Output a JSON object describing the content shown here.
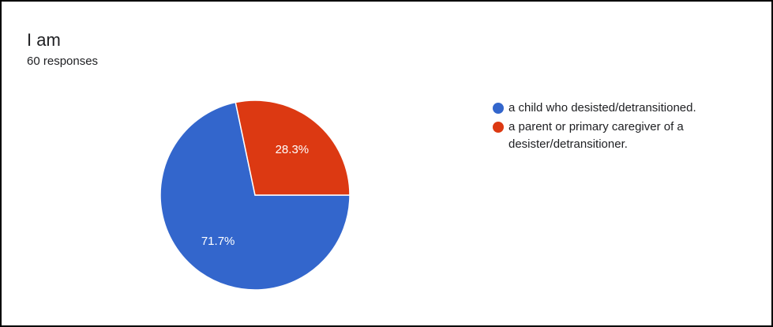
{
  "header": {
    "title": "I am",
    "subtitle": "60 responses"
  },
  "chart_data": {
    "type": "pie",
    "title": "I am",
    "subtitle": "60 responses",
    "legend_position": "right",
    "slices": [
      {
        "label": "a child who desisted/detransitioned.",
        "value": 71.7,
        "value_label": "71.7%",
        "color": "#3366cc"
      },
      {
        "label": "a parent or primary caregiver of a desister/detransitioner.",
        "value": 28.3,
        "value_label": "28.3%",
        "color": "#dc3912"
      }
    ]
  }
}
